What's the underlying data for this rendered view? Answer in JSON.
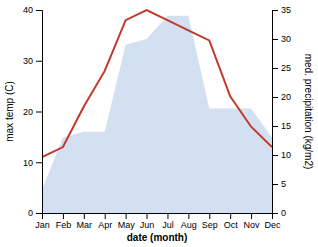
{
  "chart_data": {
    "type": "line",
    "xlabel": "date (month)",
    "ylabel": "max temp (C)",
    "y2label": "med. precipitation (kg/m2)",
    "categories": [
      "Jan",
      "Feb",
      "Mar",
      "Apr",
      "May",
      "Jun",
      "Jul",
      "Aug",
      "Sep",
      "Oct",
      "Nov",
      "Dec"
    ],
    "series": [
      {
        "type": "area",
        "axis": "y2",
        "color": "#aec6e8",
        "values": [
          4,
          13,
          14,
          14,
          29,
          30,
          34,
          34,
          18,
          18,
          18,
          13
        ]
      },
      {
        "type": "line",
        "color": "#c0392b",
        "values": [
          11,
          13,
          21,
          28,
          38,
          40,
          38,
          36,
          34,
          23,
          17,
          13
        ]
      }
    ],
    "ylim": [
      0,
      40
    ],
    "yticks": [
      0,
      10,
      20,
      30,
      40
    ],
    "y2lim": [
      0,
      35
    ],
    "y2ticks": [
      0,
      5,
      10,
      15,
      20,
      25,
      30,
      35
    ],
    "grid": false
  }
}
